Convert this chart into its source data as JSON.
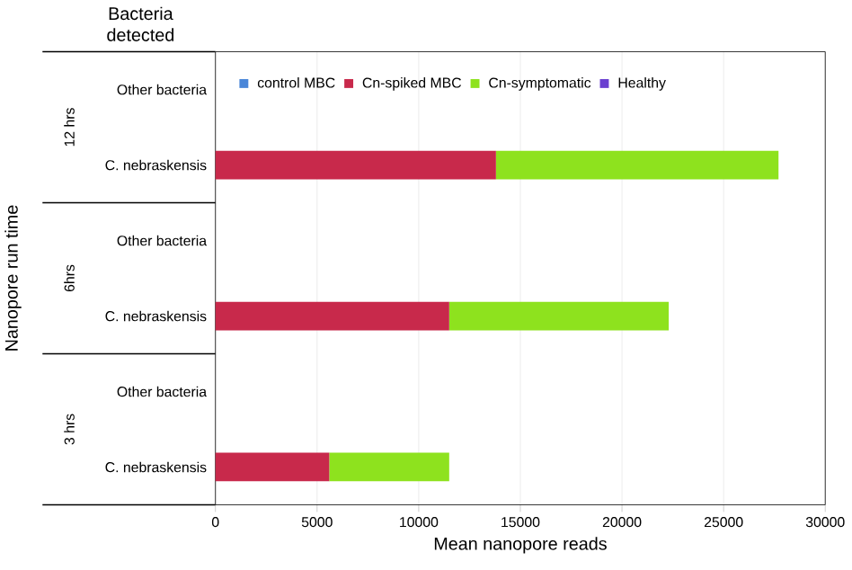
{
  "chart_data": {
    "type": "bar",
    "orientation": "horizontal",
    "stacked": true,
    "xlabel": "Mean nanopore reads",
    "ylabel": "Nanopore run time",
    "categories": [
      "Other bacteria",
      "C. nebraskensis",
      "Other bacteria",
      "C. nebraskensis",
      "Other bacteria",
      "C. nebraskensis"
    ],
    "series": [
      {
        "name": "control MBC",
        "color": "#4a86d8",
        "values": [
          0,
          0,
          0,
          0,
          0,
          0
        ]
      },
      {
        "name": "Cn-spiked MBC",
        "color": "#c8294b",
        "values": [
          0,
          13800,
          0,
          11500,
          0,
          5600
        ]
      },
      {
        "name": "Cn-symptomatic",
        "color": "#8ee21e",
        "values": [
          0,
          13900,
          0,
          10800,
          0,
          5900
        ]
      },
      {
        "name": "Healthy",
        "color": "#6a3fd0",
        "values": [
          0,
          0,
          0,
          0,
          0,
          0
        ]
      }
    ],
    "xlim": [
      0,
      30000
    ],
    "xticks": [
      0,
      5000,
      10000,
      15000,
      20000,
      25000,
      30000
    ],
    "grid": "x",
    "legend": "top",
    "annotations": [
      "Bacteria detected",
      "12 hrs",
      "6hrs",
      "3 hrs"
    ]
  }
}
